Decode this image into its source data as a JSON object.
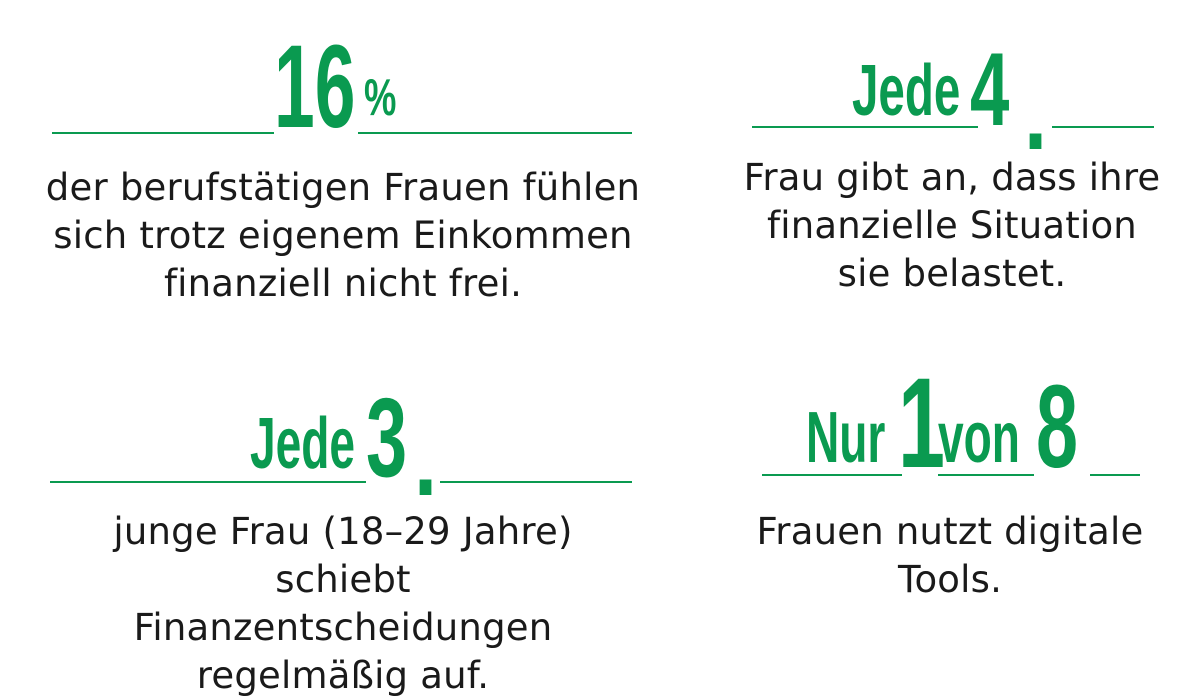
{
  "colors": {
    "accent": "#0a9a50",
    "text": "#1a1a1a",
    "background": "#ffffff"
  },
  "stats": [
    {
      "number": "16",
      "unit": "%",
      "lines": [
        "der berufstätigen Frauen fühlen",
        "sich trotz eigenem Einkommen",
        "finanziell nicht frei."
      ]
    },
    {
      "prefix": "Jede",
      "number": "4",
      "suffix": ".",
      "lines": [
        "Frau gibt an, dass ihre",
        "finanzielle Situation",
        "sie belastet."
      ]
    },
    {
      "prefix": "Jede",
      "number": "3",
      "suffix": ".",
      "lines": [
        "junge Frau (18–29 Jahre) schiebt",
        "Finanzentscheidungen",
        "regelmäßig auf."
      ]
    },
    {
      "prefix": "Nur",
      "number": "1",
      "middle": "von",
      "number2": "8",
      "lines": [
        "Frauen nutzt digitale",
        "Tools."
      ]
    }
  ]
}
